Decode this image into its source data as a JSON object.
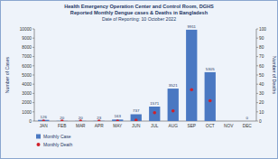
{
  "chart_data": {
    "type": "bar",
    "title": "Health Emergency Operation Center and Control Room, DGHS",
    "subtitle": "Reported Monthly Dengue cases & Deaths in Bangladesh",
    "annotations": [
      "Date of Reporting: 10 October 2022"
    ],
    "y_label": "Number of Cases",
    "y2_label": "Number of Deaths",
    "categories": [
      "JAN",
      "FEB",
      "MAR",
      "APR",
      "MAY",
      "JUN",
      "JUL",
      "AUG",
      "SEP",
      "OCT",
      "NOV",
      "DEC"
    ],
    "series": [
      {
        "name": "Monthly Case",
        "type": "bar",
        "color": "#4a78c2",
        "values": [
          126,
          20,
          20,
          23,
          163,
          737,
          1571,
          3521,
          9911,
          5305,
          null,
          0
        ]
      },
      {
        "name": "Monthly Death",
        "type": "scatter",
        "color": "#d0202a",
        "marker": "circle",
        "axis": "y2",
        "values": [
          0,
          0,
          0,
          0,
          0,
          1,
          9,
          11,
          34,
          22,
          null,
          null
        ]
      }
    ],
    "ylim": [
      0,
      10000
    ],
    "yticks": [
      0,
      1000,
      2000,
      3000,
      4000,
      5000,
      6000,
      7000,
      8000,
      9000,
      10000
    ],
    "y2lim": [
      0,
      100
    ],
    "y2ticks": [
      0,
      10,
      20,
      30,
      40,
      50,
      60,
      70,
      80,
      90,
      100
    ],
    "data_labels": true,
    "legend": "lower left",
    "grid": false
  }
}
